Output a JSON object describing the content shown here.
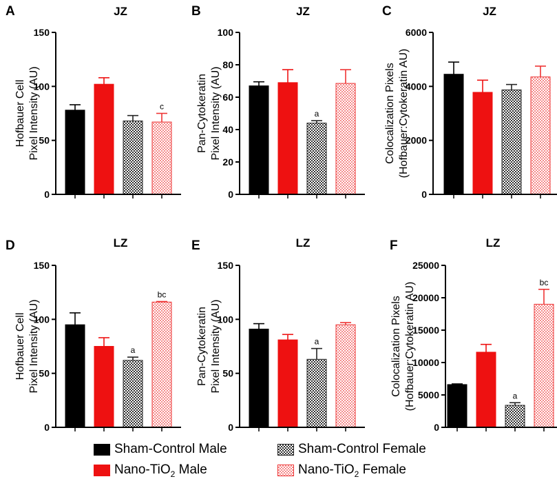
{
  "legend": {
    "items": [
      {
        "label": "Sham-Control Male"
      },
      {
        "label": "Sham-Control Female"
      },
      {
        "label_prefix": "Nano-TiO",
        "label_sub": "2",
        "label_suffix": " Male"
      },
      {
        "label_prefix": "Nano-TiO",
        "label_sub": "2",
        "label_suffix": " Female"
      }
    ]
  },
  "chart_data": [
    {
      "panel": "A",
      "title": "JZ",
      "type": "bar",
      "ylabel": [
        "Hofbauer Cell",
        "Pixel Intensity (AU)"
      ],
      "ylim": [
        0,
        150
      ],
      "yticks": [
        0,
        50,
        100,
        150
      ],
      "categories": [
        "Sham-Control Male",
        "Nano-TiO2 Male",
        "Sham-Control Female",
        "Nano-TiO2 Female"
      ],
      "values": [
        78,
        102,
        68,
        67
      ],
      "errors": [
        5,
        6,
        5,
        8
      ],
      "annotations": [
        "",
        "",
        "",
        "c"
      ]
    },
    {
      "panel": "B",
      "title": "JZ",
      "type": "bar",
      "ylabel": [
        "Pan-Cytokeratin",
        "Pixel Intensity (AU)"
      ],
      "ylim": [
        0,
        100
      ],
      "yticks": [
        0,
        20,
        40,
        60,
        80,
        100
      ],
      "categories": [
        "Sham-Control Male",
        "Nano-TiO2 Male",
        "Sham-Control Female",
        "Nano-TiO2 Female"
      ],
      "values": [
        67,
        69,
        44,
        68.5
      ],
      "errors": [
        2.5,
        8,
        1.5,
        8.5
      ],
      "annotations": [
        "",
        "",
        "a",
        ""
      ]
    },
    {
      "panel": "C",
      "title": "JZ",
      "type": "bar",
      "ylabel": [
        "Colocalization Pixels",
        "(Hofbauer:Cytokeratin AU)"
      ],
      "ylim": [
        0,
        6000
      ],
      "yticks": [
        0,
        2000,
        4000,
        6000
      ],
      "categories": [
        "Sham-Control Male",
        "Nano-TiO2 Male",
        "Sham-Control Female",
        "Nano-TiO2 Female"
      ],
      "values": [
        4450,
        3780,
        3870,
        4350
      ],
      "errors": [
        450,
        450,
        200,
        400
      ],
      "annotations": [
        "",
        "",
        "",
        ""
      ]
    },
    {
      "panel": "D",
      "title": "LZ",
      "type": "bar",
      "ylabel": [
        "Hofbauer Cell",
        "Pixel Intensity (AU)"
      ],
      "ylim": [
        0,
        150
      ],
      "yticks": [
        0,
        50,
        100,
        150
      ],
      "categories": [
        "Sham-Control Male",
        "Nano-TiO2 Male",
        "Sham-Control Female",
        "Nano-TiO2 Female"
      ],
      "values": [
        95,
        75,
        62,
        116
      ],
      "errors": [
        11,
        8,
        3,
        0.5
      ],
      "annotations": [
        "",
        "",
        "a",
        "bc"
      ]
    },
    {
      "panel": "E",
      "title": "LZ",
      "type": "bar",
      "ylabel": [
        "Pan-Cytokeratin",
        "Pixel Intensity (AU)"
      ],
      "ylim": [
        0,
        150
      ],
      "yticks": [
        0,
        50,
        100,
        150
      ],
      "categories": [
        "Sham-Control Male",
        "Nano-TiO2 Male",
        "Sham-Control Female",
        "Nano-TiO2 Female"
      ],
      "values": [
        91,
        81,
        63,
        95
      ],
      "errors": [
        5,
        5,
        10,
        2
      ],
      "annotations": [
        "",
        "",
        "a",
        ""
      ]
    },
    {
      "panel": "F",
      "title": "LZ",
      "type": "bar",
      "ylabel": [
        "Colocalization Pixels",
        "(Hofbauer:Cytokeratin AU)"
      ],
      "ylim": [
        0,
        25000
      ],
      "yticks": [
        0,
        5000,
        10000,
        15000,
        20000,
        25000
      ],
      "categories": [
        "Sham-Control Male",
        "Nano-TiO2 Male",
        "Sham-Control Female",
        "Nano-TiO2 Female"
      ],
      "values": [
        6600,
        11600,
        3400,
        19000
      ],
      "errors": [
        100,
        1200,
        400,
        2300
      ],
      "annotations": [
        "",
        "",
        "a",
        "bc"
      ]
    }
  ]
}
